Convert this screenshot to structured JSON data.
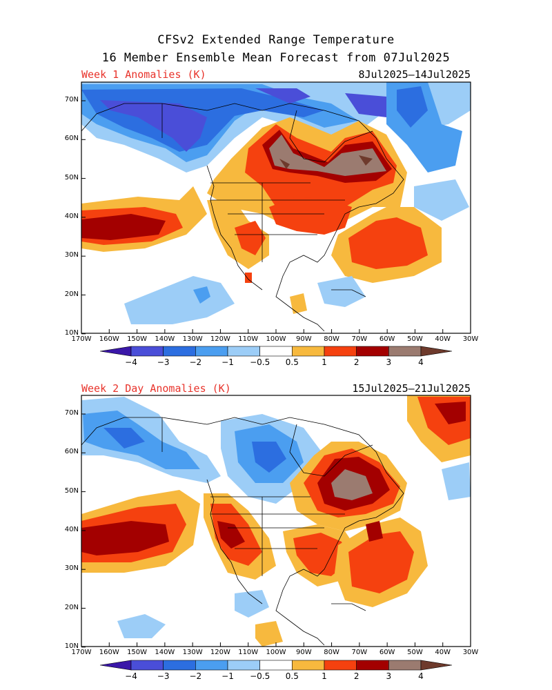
{
  "header": {
    "line1": "CFSv2 Extended Range Temperature",
    "line2": "16 Member Ensemble Mean Forecast from 07Jul2025"
  },
  "panels": [
    {
      "label": "Week 1 Anomalies (K)",
      "dates": "8Jul2025–14Jul2025"
    },
    {
      "label": "Week 2 Day Anomalies (K)",
      "dates": "15Jul2025–21Jul2025"
    }
  ],
  "axes": {
    "lat_labels": [
      "70N",
      "60N",
      "50N",
      "40N",
      "30N",
      "20N",
      "10N"
    ],
    "lon_labels": [
      "170W",
      "160W",
      "150W",
      "140W",
      "130W",
      "120W",
      "110W",
      "100W",
      "90W",
      "80W",
      "70W",
      "60W",
      "50W",
      "40W",
      "30W"
    ]
  },
  "colorbar": {
    "labels": [
      "−4",
      "−3",
      "−2",
      "−1",
      "−0.5",
      "0.5",
      "1",
      "2",
      "3",
      "4"
    ],
    "colors": [
      "#3a17a8",
      "#4a4ed8",
      "#2c6ee0",
      "#4b9ef0",
      "#9ccdf7",
      "#ffffff",
      "#f7b93e",
      "#f5410f",
      "#a30000",
      "#9b7b70",
      "#6e3a2c"
    ]
  }
}
